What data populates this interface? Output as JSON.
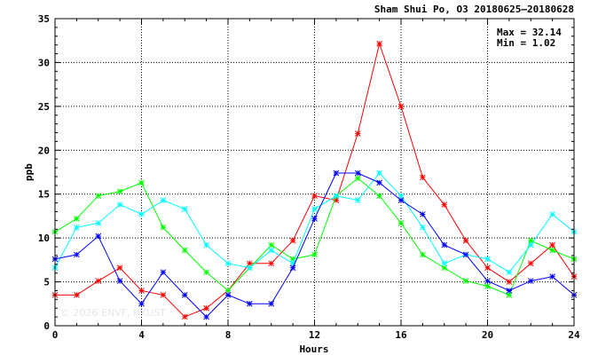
{
  "chart_data": {
    "type": "line",
    "title": "Sham Shui Po, O3 20180625—20180628",
    "xlabel": "Hours",
    "ylabel": "ppb",
    "xlim": [
      0,
      24
    ],
    "ylim": [
      0,
      35
    ],
    "xticks": [
      0,
      4,
      8,
      12,
      16,
      20,
      24
    ],
    "yticks": [
      0,
      5,
      10,
      15,
      20,
      25,
      30,
      35
    ],
    "grid": true,
    "max_label": "Max = 32.14",
    "min_label": "Min =  1.02",
    "watermark": "© 2026  ENVF, HKUST",
    "x": [
      0,
      1,
      2,
      3,
      4,
      5,
      6,
      7,
      8,
      9,
      10,
      11,
      12,
      13,
      14,
      15,
      16,
      17,
      18,
      19,
      20,
      21,
      22,
      23,
      24
    ],
    "series": [
      {
        "color": "#ff0000",
        "values": [
          3.5,
          3.5,
          5.1,
          6.6,
          4.0,
          3.5,
          1.02,
          2.0,
          4.0,
          7.1,
          7.1,
          9.7,
          14.8,
          14.3,
          21.9,
          32.14,
          25.0,
          16.9,
          13.8,
          9.7,
          6.6,
          5.0,
          7.1,
          9.2,
          5.6
        ]
      },
      {
        "color": "#00ff00",
        "values": [
          10.7,
          12.2,
          14.8,
          15.3,
          16.3,
          11.2,
          8.6,
          6.1,
          4.0,
          6.6,
          9.2,
          7.6,
          8.1,
          14.8,
          16.8,
          14.8,
          11.7,
          8.1,
          6.6,
          5.1,
          4.5,
          3.5,
          9.7,
          8.6,
          7.6
        ]
      },
      {
        "color": "#00ffff",
        "values": [
          6.6,
          11.2,
          11.7,
          13.8,
          12.7,
          14.3,
          13.3,
          9.2,
          7.1,
          6.6,
          8.6,
          7.1,
          13.3,
          14.8,
          14.3,
          17.4,
          14.8,
          11.2,
          7.1,
          8.1,
          7.6,
          6.1,
          9.2,
          12.7,
          10.7
        ]
      },
      {
        "color": "#0000ff",
        "values": [
          7.6,
          8.1,
          10.2,
          5.1,
          2.5,
          6.1,
          3.5,
          1.0,
          3.5,
          2.5,
          2.5,
          6.6,
          12.2,
          17.4,
          17.4,
          16.3,
          14.3,
          12.7,
          9.2,
          8.1,
          5.1,
          4.0,
          5.1,
          5.6,
          3.5
        ]
      }
    ]
  }
}
